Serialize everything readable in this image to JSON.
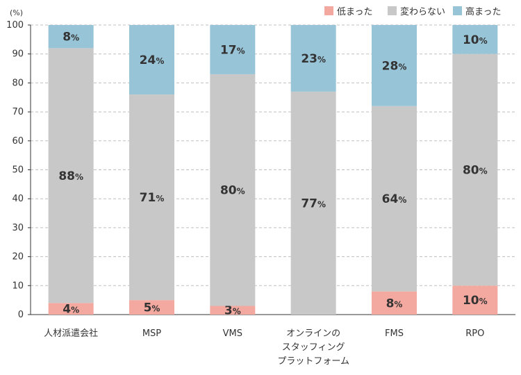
{
  "chart_data": {
    "type": "bar",
    "stacked": true,
    "y_unit_label": "(%)",
    "ylim": [
      0,
      100
    ],
    "yticks": [
      0,
      10,
      20,
      30,
      40,
      50,
      60,
      70,
      80,
      90,
      100
    ],
    "grid": true,
    "legend_position": "top-right",
    "categories": [
      [
        "人材派遣会社"
      ],
      [
        "MSP"
      ],
      [
        "VMS"
      ],
      [
        "オンラインの",
        "スタッフィング",
        "プラットフォーム"
      ],
      [
        "FMS"
      ],
      [
        "RPO"
      ]
    ],
    "series": [
      {
        "name": "低まった",
        "color": "#f4a9a0",
        "values": [
          4,
          5,
          3,
          0,
          8,
          10
        ],
        "labels": [
          "4",
          "5",
          "3",
          "",
          "8",
          "10"
        ]
      },
      {
        "name": "変わらない",
        "color": "#c8c8c8",
        "values": [
          88,
          71,
          80,
          77,
          64,
          80
        ],
        "labels": [
          "88",
          "71",
          "80",
          "77",
          "64",
          "80"
        ]
      },
      {
        "name": "高まった",
        "color": "#98c4d8",
        "values": [
          8,
          24,
          17,
          23,
          28,
          10
        ],
        "labels": [
          "8",
          "24",
          "17",
          "23",
          "28",
          "10"
        ]
      }
    ],
    "value_suffix": "%"
  }
}
